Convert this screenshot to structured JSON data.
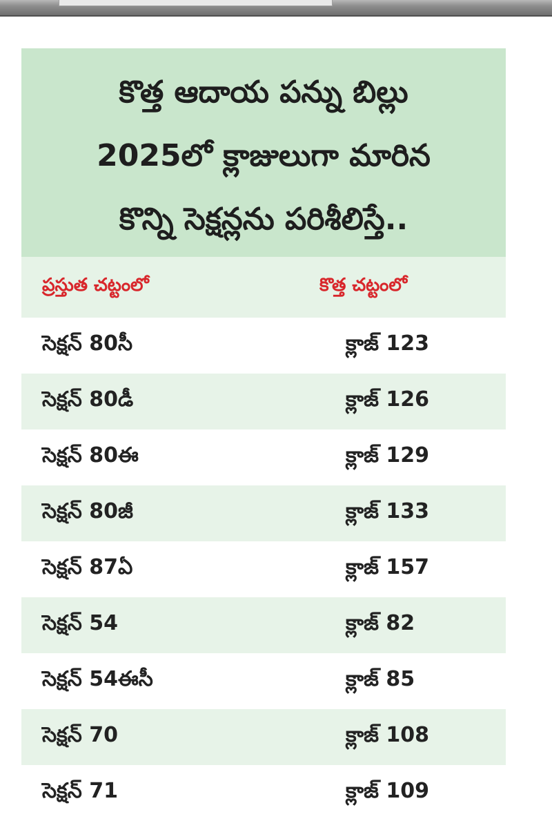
{
  "title_lines": [
    "కొత్త ఆదాయ పన్ను బిల్లు",
    "2025లో క్లాజులుగా మారిన",
    "కొన్ని సెక్షన్లను పరిశీలిస్తే.."
  ],
  "table": {
    "headers": {
      "current": "ప్రస్తుత చట్టంలో",
      "new": "కొత్త చట్టంలో"
    },
    "rows": [
      {
        "current": "సెక్షన్ 80సీ",
        "new": "క్లాజ్ 123"
      },
      {
        "current": "సెక్షన్ 80డీ",
        "new": "క్లాజ్ 126"
      },
      {
        "current": "సెక్షన్ 80ఈ",
        "new": "క్లాజ్ 129"
      },
      {
        "current": "సెక్షన్ 80జీ",
        "new": "క్లాజ్ 133"
      },
      {
        "current": "సెక్షన్ 87ఏ",
        "new": "క్లాజ్ 157"
      },
      {
        "current": "సెక్షన్ 54",
        "new": "క్లాజ్ 82"
      },
      {
        "current": "సెక్షన్ 54ఈసీ",
        "new": "క్లాజ్ 85"
      },
      {
        "current": "సెక్షన్ 70",
        "new": "క్లాజ్ 108"
      },
      {
        "current": "సెక్షన్ 71",
        "new": "క్లాజ్ 109"
      }
    ]
  },
  "colors": {
    "title_background": "#c9e6cc",
    "header_background": "#e6f3e7",
    "header_text": "#d8262b",
    "stripe": "#e7f3e8"
  }
}
